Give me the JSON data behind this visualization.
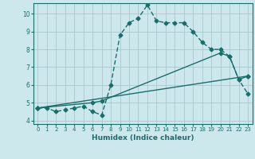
{
  "xlabel": "Humidex (Indice chaleur)",
  "bg_color": "#cce8ec",
  "grid_color": "#aac8cc",
  "line_color": "#1a6e6a",
  "xlim": [
    -0.5,
    23.5
  ],
  "ylim": [
    3.8,
    10.6
  ],
  "xticks": [
    0,
    1,
    2,
    3,
    4,
    5,
    6,
    7,
    8,
    9,
    10,
    11,
    12,
    13,
    14,
    15,
    16,
    17,
    18,
    19,
    20,
    21,
    22,
    23
  ],
  "yticks": [
    4,
    5,
    6,
    7,
    8,
    9,
    10
  ],
  "line1_x": [
    0,
    1,
    2,
    3,
    4,
    5,
    6,
    7,
    8,
    9,
    10,
    11,
    12,
    13,
    14,
    15,
    16,
    17,
    18,
    19,
    20,
    21,
    22,
    23
  ],
  "line1_y": [
    4.7,
    4.7,
    4.5,
    4.6,
    4.7,
    4.8,
    4.5,
    4.3,
    6.0,
    8.8,
    9.5,
    9.75,
    10.5,
    9.6,
    9.5,
    9.5,
    9.5,
    9.0,
    8.4,
    8.0,
    8.0,
    7.6,
    6.3,
    5.5
  ],
  "line2_x": [
    0,
    23
  ],
  "line2_y": [
    4.7,
    6.5
  ],
  "line3_x": [
    0,
    6,
    7,
    20,
    21,
    22,
    23
  ],
  "line3_y": [
    4.7,
    5.0,
    5.1,
    7.8,
    7.6,
    6.3,
    6.5
  ],
  "marker": "D",
  "markersize": 2.5,
  "linewidth": 1.0
}
